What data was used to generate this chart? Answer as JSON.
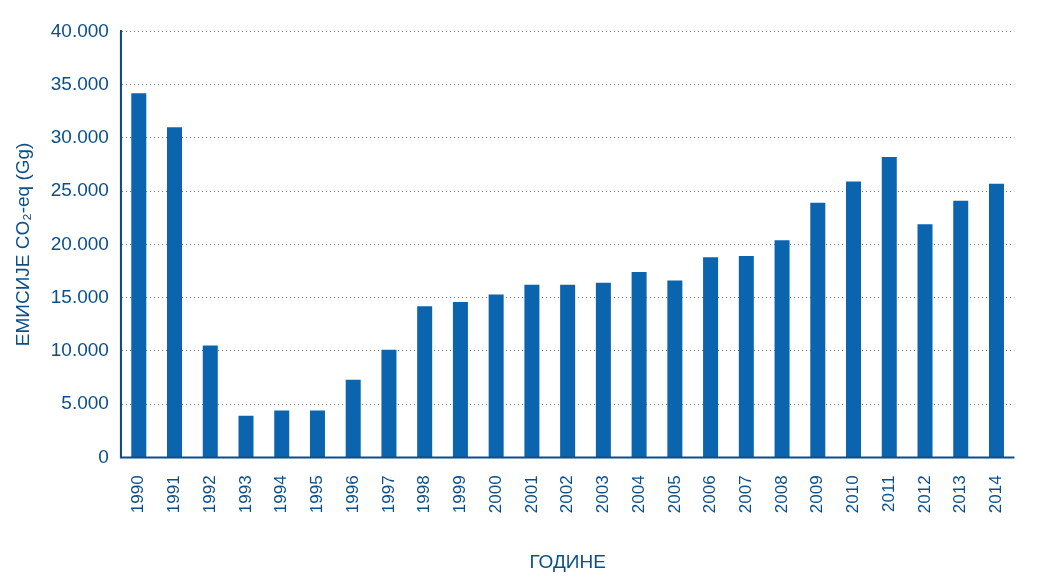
{
  "chart_data": {
    "type": "bar",
    "xlabel": "ГОДИНЕ",
    "ylabel": "ЕМИСИЈЕ CO₂-eq (Gg)",
    "categories": [
      "1990",
      "1991",
      "1992",
      "1993",
      "1994",
      "1995",
      "1996",
      "1997",
      "1998",
      "1999",
      "2000",
      "2001",
      "2002",
      "2003",
      "2004",
      "2005",
      "2006",
      "2007",
      "2008",
      "2009",
      "2010",
      "2011",
      "2012",
      "2013",
      "2014"
    ],
    "values": [
      34200,
      31000,
      10500,
      3900,
      4400,
      4400,
      7300,
      10100,
      14200,
      14600,
      15300,
      16200,
      16200,
      16400,
      17400,
      16600,
      18800,
      18900,
      20400,
      23900,
      25900,
      28200,
      21900,
      24100,
      25700
    ],
    "color": "#0b64ae",
    "ylim": [
      0,
      40000
    ],
    "yticks": [
      {
        "value": 0,
        "label": "0"
      },
      {
        "value": 5000,
        "label": "5.000"
      },
      {
        "value": 10000,
        "label": "10.000"
      },
      {
        "value": 15000,
        "label": "15.000"
      },
      {
        "value": 20000,
        "label": "20.000"
      },
      {
        "value": 25000,
        "label": "25.000"
      },
      {
        "value": 30000,
        "label": "30.000"
      },
      {
        "value": 35000,
        "label": "35.000"
      },
      {
        "value": 40000,
        "label": "40.000"
      }
    ],
    "grid": "y"
  }
}
